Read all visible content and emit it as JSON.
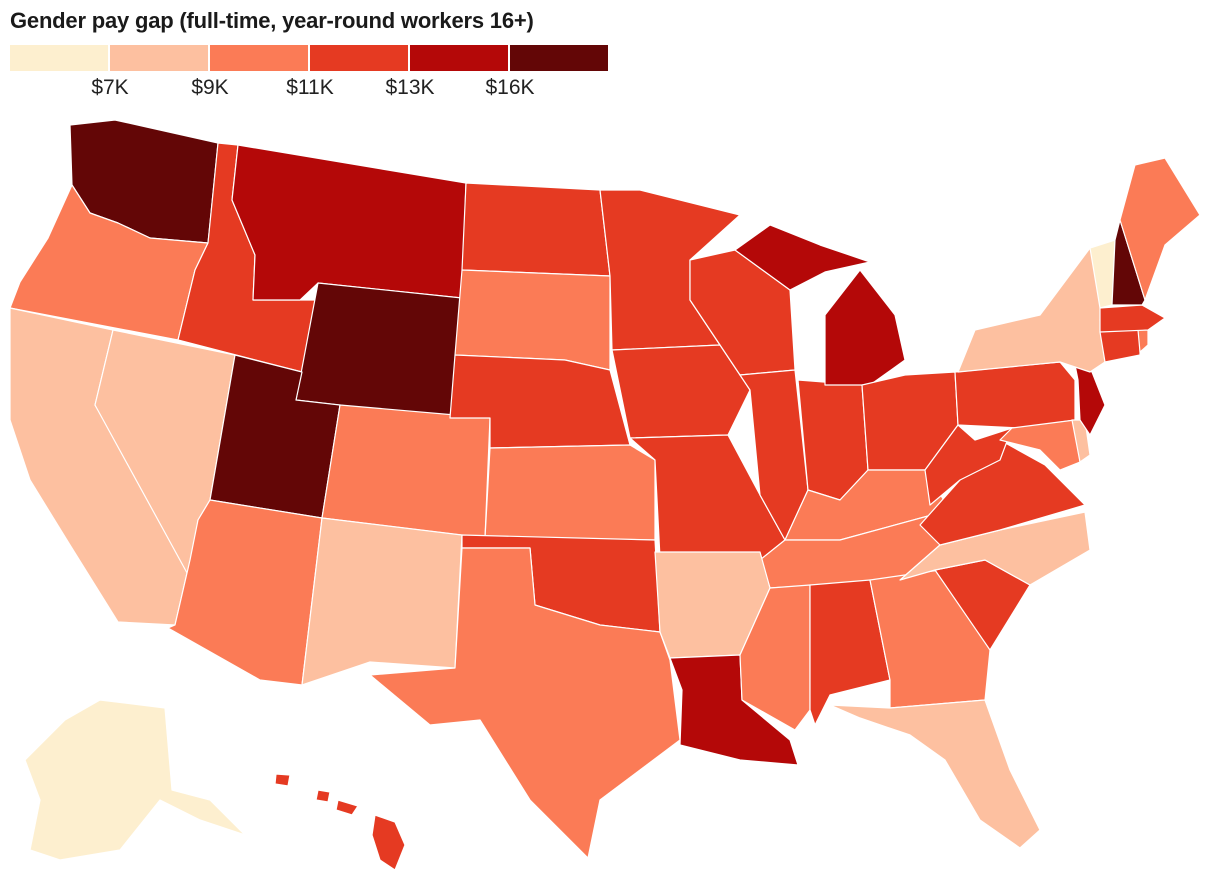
{
  "title": "Gender pay gap (full-time, year-round workers 16+)",
  "legend": {
    "colors": [
      "#fdefcf",
      "#fdc0a0",
      "#fb7b56",
      "#e53a22",
      "#b40808",
      "#630606"
    ],
    "ticks": [
      "$7K",
      "$9K",
      "$11K",
      "$13K",
      "$16K"
    ]
  },
  "chart_data": {
    "type": "choropleth",
    "title": "Gender pay gap (full-time, year-round workers 16+)",
    "bins": [
      {
        "label": "< $7K",
        "color": "#fdefcf"
      },
      {
        "label": "$7K – $9K",
        "color": "#fdc0a0"
      },
      {
        "label": "$9K – $11K",
        "color": "#fb7b56"
      },
      {
        "label": "$11K – $13K",
        "color": "#e53a22"
      },
      {
        "label": "$13K – $16K",
        "color": "#b40808"
      },
      {
        "label": "> $16K",
        "color": "#630606"
      }
    ],
    "states": {
      "AK": 0,
      "VT": 0,
      "CA": 1,
      "NV": 1,
      "NM": 1,
      "AR": 1,
      "NC": 1,
      "FL": 1,
      "NY": 1,
      "DE": 1,
      "OR": 2,
      "AZ": 2,
      "CO": 2,
      "SD": 2,
      "KS": 2,
      "TX": 2,
      "KY": 2,
      "TN": 2,
      "MS": 2,
      "GA": 2,
      "MD": 2,
      "ME": 2,
      "RI": 2,
      "ID": 3,
      "ND": 3,
      "MN": 3,
      "NE": 3,
      "IA": 3,
      "MO": 3,
      "OK": 3,
      "WI": 3,
      "IL": 3,
      "IN": 3,
      "OH": 3,
      "PA": 3,
      "WV": 3,
      "VA": 3,
      "AL": 3,
      "SC": 3,
      "MA": 3,
      "CT": 3,
      "HI": 3,
      "MT": 4,
      "MI": 4,
      "LA": 4,
      "NJ": 4,
      "WA": 5,
      "WY": 5,
      "UT": 5,
      "NH": 5
    }
  }
}
